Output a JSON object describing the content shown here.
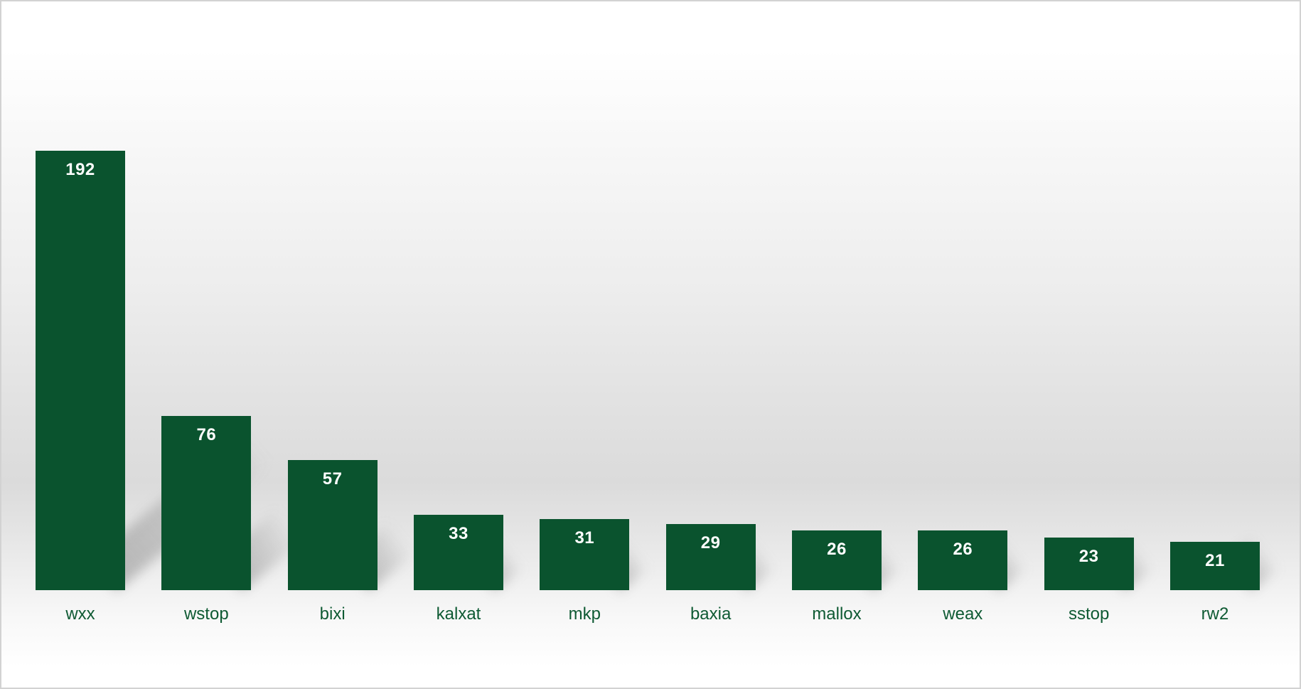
{
  "chart_data": {
    "type": "bar",
    "title": "",
    "xlabel": "",
    "ylabel": "",
    "categories": [
      "wxx",
      "wstop",
      "bixi",
      "kalxat",
      "mkp",
      "baxia",
      "mallox",
      "weax",
      "sstop",
      "rw2"
    ],
    "values": [
      192,
      76,
      57,
      33,
      31,
      29,
      26,
      26,
      23,
      21
    ],
    "ylim": [
      0,
      192
    ],
    "grid": false,
    "legend": false,
    "axes_visible": false,
    "value_labels_position": "inside-top",
    "colors": {
      "bar_fill": "#0a532e",
      "value_label": "#ffffff",
      "category_label": "#0e5a33",
      "border": "#d2d2d2",
      "background_top": "#ffffff",
      "background_mid_gray": "#dbdbdb",
      "background_bottom": "#ffffff"
    },
    "effects": {
      "bar_shadow": "perspective-diagonal-right"
    }
  }
}
